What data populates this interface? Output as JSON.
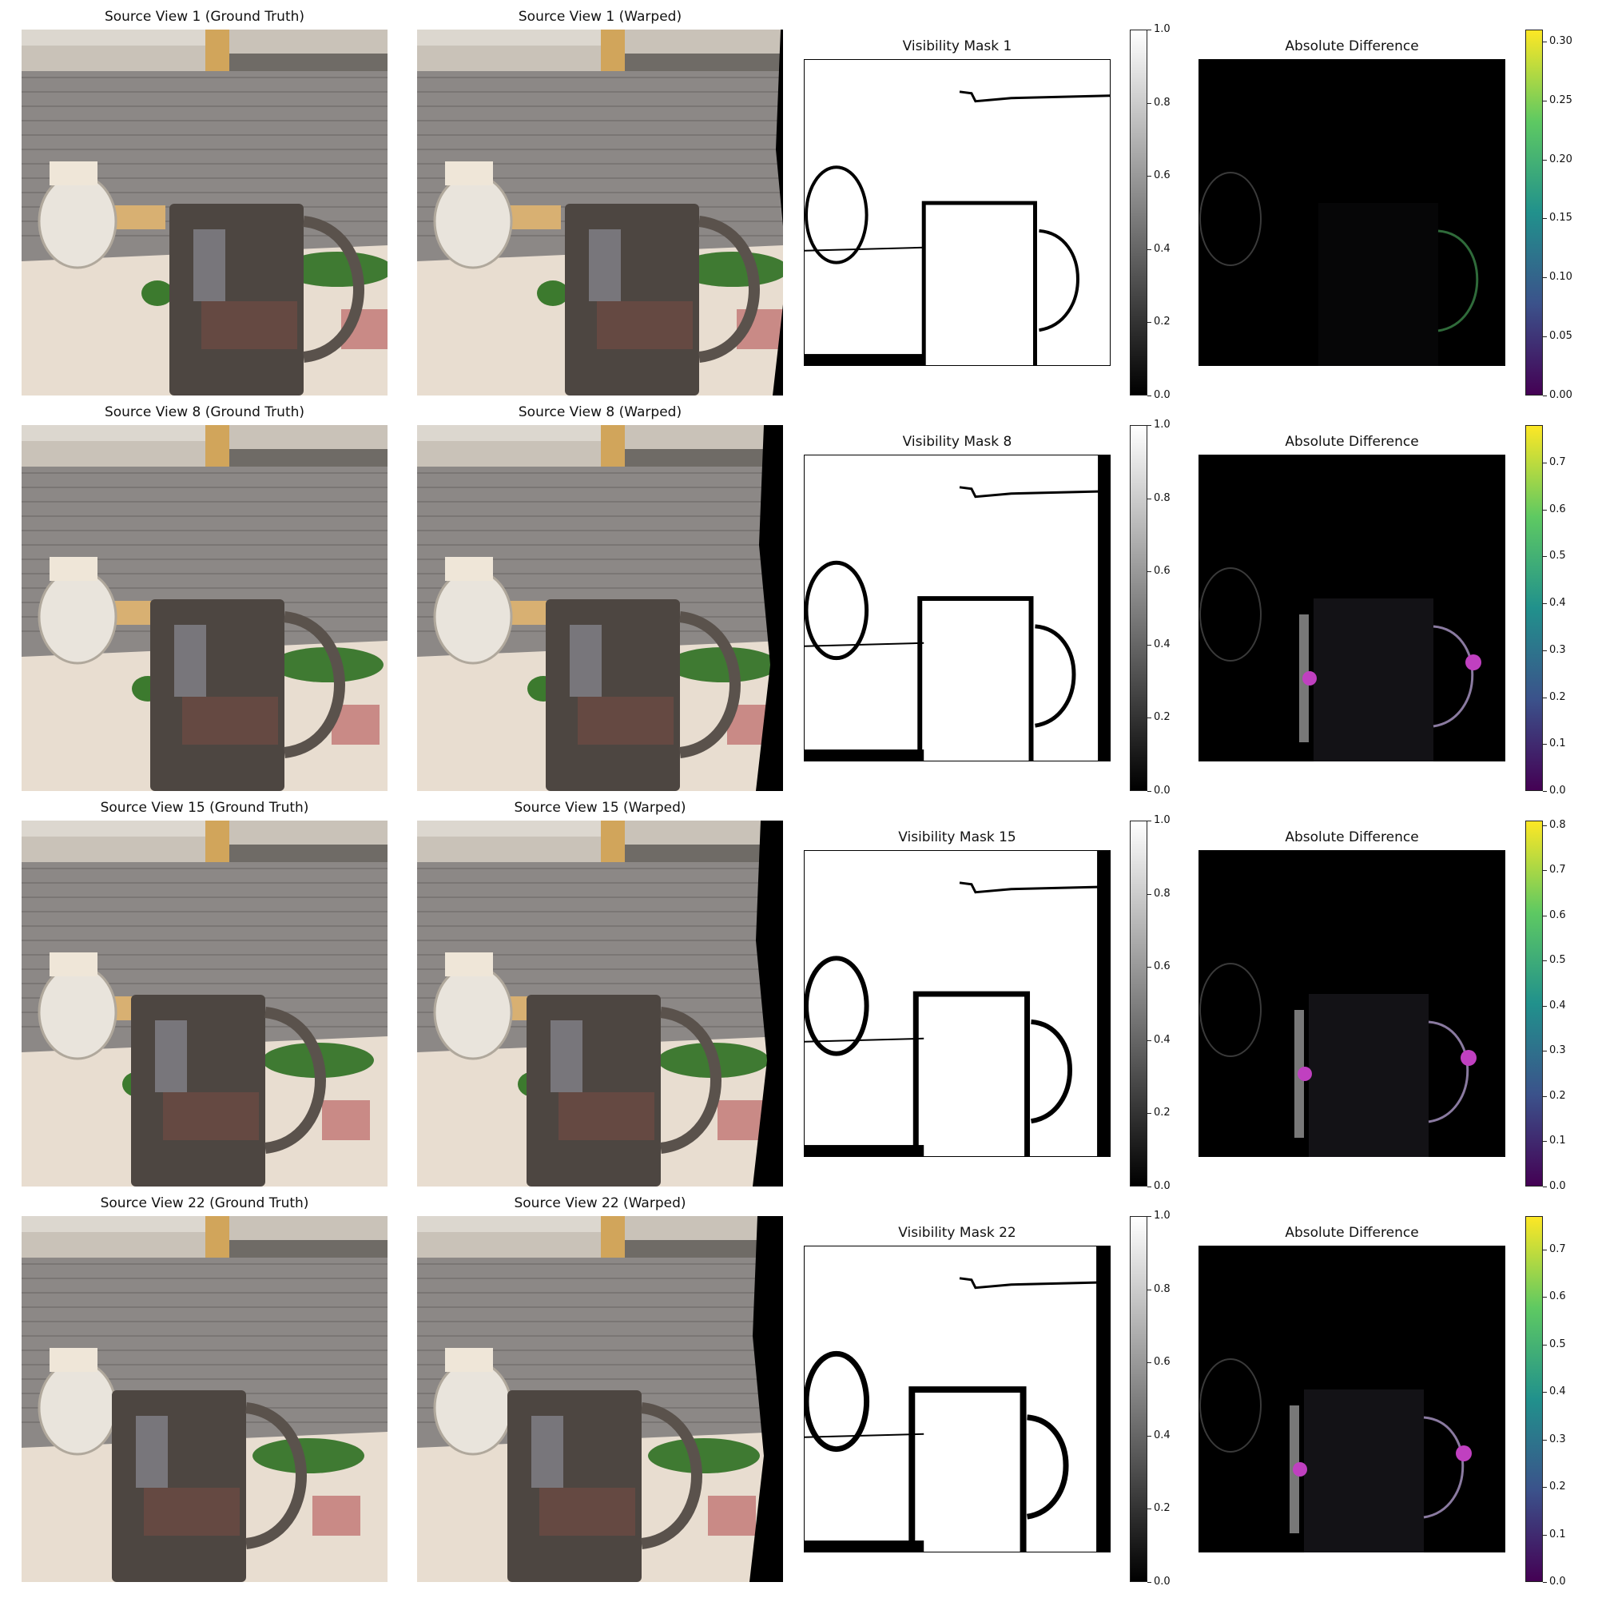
{
  "rows": [
    {
      "view": "1",
      "gt_title": "Source View 1 (Ground Truth)",
      "warped_title": "Source View 1 (Warped)",
      "mask_title": "Visibility Mask 1",
      "diff_title": "Absolute Difference",
      "mask_ticks": [
        "0.0",
        "0.2",
        "0.4",
        "0.6",
        "0.8",
        "1.0"
      ],
      "diff_ticks": [
        "0.00",
        "0.05",
        "0.10",
        "0.15",
        "0.20",
        "0.25",
        "0.30"
      ]
    },
    {
      "view": "8",
      "gt_title": "Source View 8 (Ground Truth)",
      "warped_title": "Source View 8 (Warped)",
      "mask_title": "Visibility Mask 8",
      "diff_title": "Absolute Difference",
      "mask_ticks": [
        "0.0",
        "0.2",
        "0.4",
        "0.6",
        "0.8",
        "1.0"
      ],
      "diff_ticks": [
        "0.0",
        "0.1",
        "0.2",
        "0.3",
        "0.4",
        "0.5",
        "0.6",
        "0.7"
      ]
    },
    {
      "view": "15",
      "gt_title": "Source View 15 (Ground Truth)",
      "warped_title": "Source View 15 (Warped)",
      "mask_title": "Visibility Mask 15",
      "diff_title": "Absolute Difference",
      "mask_ticks": [
        "0.0",
        "0.2",
        "0.4",
        "0.6",
        "0.8",
        "1.0"
      ],
      "diff_ticks": [
        "0.0",
        "0.1",
        "0.2",
        "0.3",
        "0.4",
        "0.5",
        "0.6",
        "0.7",
        "0.8"
      ]
    },
    {
      "view": "22",
      "gt_title": "Source View 22 (Ground Truth)",
      "warped_title": "Source View 22 (Warped)",
      "mask_title": "Visibility Mask 22",
      "diff_title": "Absolute Difference",
      "mask_ticks": [
        "0.0",
        "0.2",
        "0.4",
        "0.6",
        "0.8",
        "1.0"
      ],
      "diff_ticks": [
        "0.0",
        "0.1",
        "0.2",
        "0.3",
        "0.4",
        "0.5",
        "0.6",
        "0.7"
      ]
    }
  ],
  "colormaps": {
    "mask": "gray",
    "difference": "viridis"
  }
}
